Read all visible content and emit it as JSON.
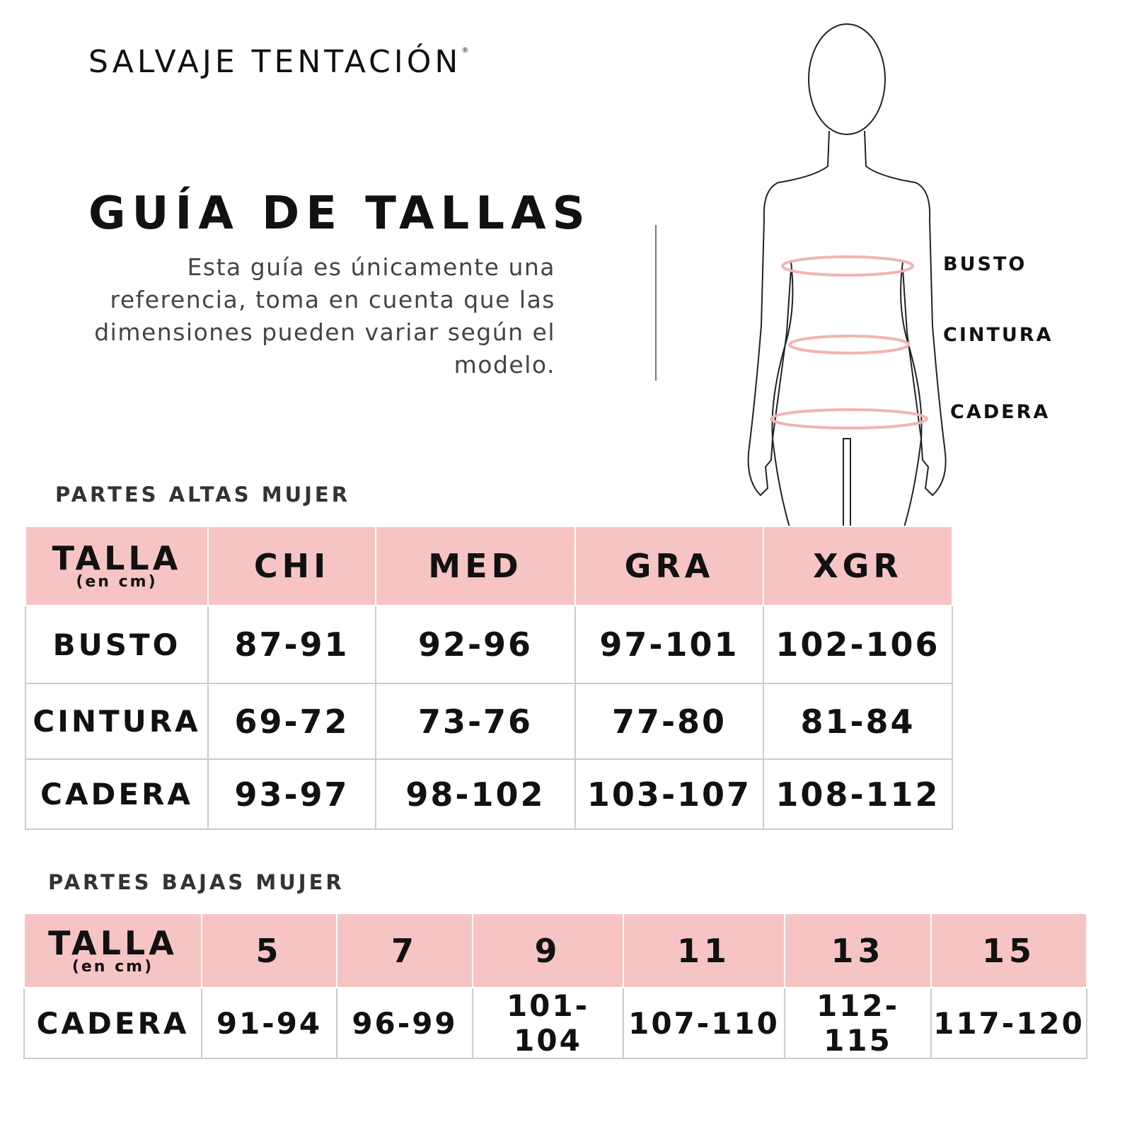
{
  "brand": {
    "name": "SALVAJE TENTACIÓN",
    "mark": "®"
  },
  "title": "GUÍA DE TALLAS",
  "description": "Esta guía es únicamente una referencia, toma en cuenta que las dimensiones pueden variar según el modelo.",
  "figure": {
    "labels": [
      "BUSTO",
      "CINTURA",
      "CADERA"
    ],
    "measure_color": "#f2b3b3"
  },
  "colors": {
    "header_bg": "#f7c4c4",
    "text": "#111111",
    "border": "#cccccc"
  },
  "upper": {
    "section": "PARTES ALTAS MUJER",
    "header": {
      "talla": "TALLA",
      "unit": "(en cm)",
      "sizes": [
        "CHI",
        "MED",
        "GRA",
        "XGR"
      ]
    },
    "rows": [
      {
        "label": "BUSTO",
        "values": [
          "87-91",
          "92-96",
          "97-101",
          "102-106"
        ]
      },
      {
        "label": "CINTURA",
        "values": [
          "69-72",
          "73-76",
          "77-80",
          "81-84"
        ]
      },
      {
        "label": "CADERA",
        "values": [
          "93-97",
          "98-102",
          "103-107",
          "108-112"
        ]
      }
    ]
  },
  "lower": {
    "section": "PARTES BAJAS MUJER",
    "header": {
      "talla": "TALLA",
      "unit": "(en cm)",
      "sizes": [
        "5",
        "7",
        "9",
        "11",
        "13",
        "15"
      ]
    },
    "rows": [
      {
        "label": "CADERA",
        "values": [
          "91-94",
          "96-99",
          "101-104",
          "107-110",
          "112-115",
          "117-120"
        ]
      }
    ]
  }
}
